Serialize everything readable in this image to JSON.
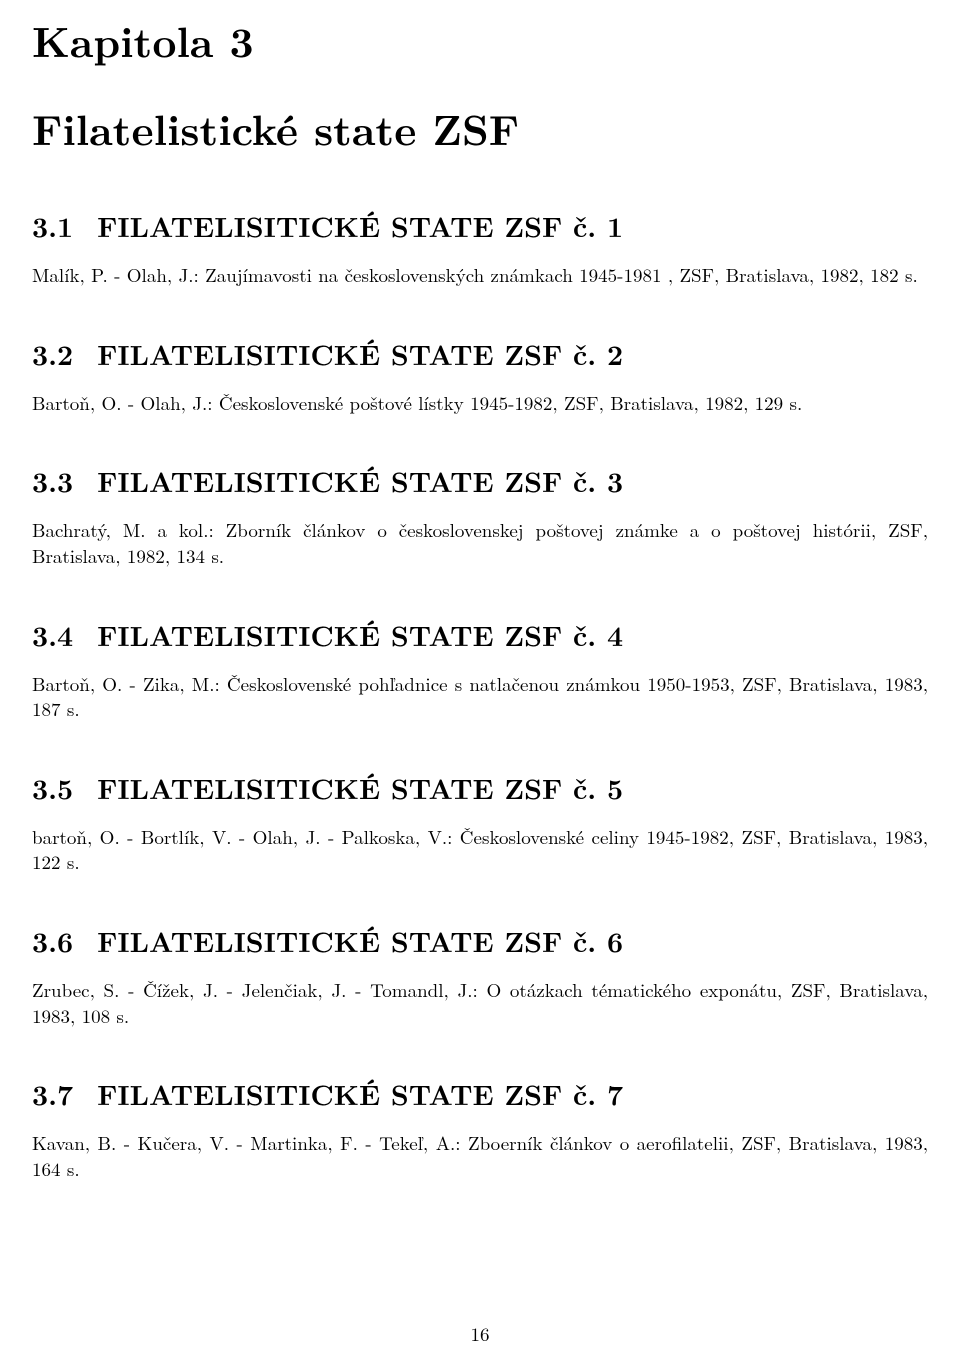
{
  "chapter": {
    "label": "Kapitola 3",
    "title": "Filatelistické state ZSF"
  },
  "sections": [
    {
      "num": "3.1",
      "heading": "FILATELISITICKÉ STATE ZSF č. 1",
      "entry": "Malík, P. - Olah, J.: Zaujímavosti na československých známkach 1945-1981 , ZSF, Bratislava, 1982, 182 s."
    },
    {
      "num": "3.2",
      "heading": "FILATELISITICKÉ STATE ZSF č. 2",
      "entry": "Bartoň, O. - Olah, J.: Československé poštové lístky 1945-1982, ZSF, Bratislava, 1982, 129 s."
    },
    {
      "num": "3.3",
      "heading": "FILATELISITICKÉ STATE ZSF č. 3",
      "entry": "Bachratý, M. a kol.: Zborník článkov o československej poštovej známke a o poštovej histórii, ZSF, Bratislava, 1982, 134 s."
    },
    {
      "num": "3.4",
      "heading": "FILATELISITICKÉ STATE ZSF č. 4",
      "entry": "Bartoň, O. - Zika, M.: Československé pohľadnice s natlačenou známkou 1950-1953, ZSF, Bratislava, 1983, 187 s."
    },
    {
      "num": "3.5",
      "heading": "FILATELISITICKÉ STATE ZSF č. 5",
      "entry": "bartoň, O. - Bortlík, V. - Olah, J. - Palkoska, V.: Československé celiny 1945-1982, ZSF, Bratislava, 1983, 122 s."
    },
    {
      "num": "3.6",
      "heading": "FILATELISITICKÉ STATE ZSF č. 6",
      "entry": "Zrubec, S. - Čížek, J. - Jelenčiak, J. - Tomandl, J.: O otázkach tématického exponátu, ZSF, Bratislava, 1983, 108 s."
    },
    {
      "num": "3.7",
      "heading": "FILATELISITICKÉ STATE ZSF č. 7",
      "entry": "Kavan, B. - Kučera, V. - Martinka, F. - Tekeľ, A.: Zboerník článkov o aerofilatelii, ZSF, Bratislava, 1983, 164 s."
    }
  ],
  "page_number": "16"
}
